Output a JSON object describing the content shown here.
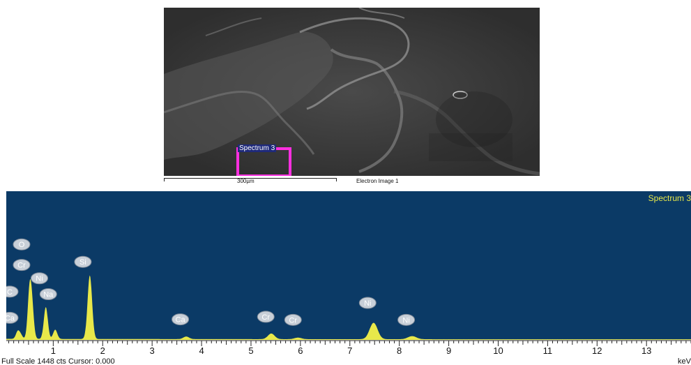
{
  "electron_image": {
    "spectrum_marker_label": "Spectrum 3",
    "scale_label": "300µm",
    "image_label": "Electron Image 1"
  },
  "spectrum": {
    "title": "Spectrum 3",
    "status_text": "Full Scale 1448 cts Cursor: 0.000",
    "x_unit": "keV",
    "background_color": "#0b3a66",
    "trace_color": "#e8e84a",
    "marker_color": "#ff2fe0"
  },
  "chart_data": {
    "type": "area",
    "title": "Spectrum 3",
    "xlabel": "keV",
    "ylabel": "",
    "xlim": [
      0.05,
      13.9
    ],
    "ylim": [
      0,
      1448
    ],
    "grid": false,
    "x_ticks": [
      1,
      2,
      3,
      4,
      5,
      6,
      7,
      8,
      9,
      10,
      11,
      12,
      13
    ],
    "peaks": [
      {
        "element": "C",
        "x": 0.28,
        "y": 70
      },
      {
        "element": "Ca",
        "x": 0.34,
        "y": 40
      },
      {
        "element": "O",
        "x": 0.52,
        "y": 430
      },
      {
        "element": "Cr",
        "x": 0.57,
        "y": 280
      },
      {
        "element": "Ni",
        "x": 0.85,
        "y": 310
      },
      {
        "element": "Na",
        "x": 1.04,
        "y": 90
      },
      {
        "element": "Si",
        "x": 1.74,
        "y": 620
      },
      {
        "element": "Ca",
        "x": 3.69,
        "y": 25
      },
      {
        "element": "Cr",
        "x": 5.41,
        "y": 55
      },
      {
        "element": "Cr",
        "x": 5.95,
        "y": 15
      },
      {
        "element": "Ni",
        "x": 7.48,
        "y": 160
      },
      {
        "element": "Ni",
        "x": 8.26,
        "y": 30
      }
    ],
    "label_positions": [
      {
        "text": "C",
        "x": 0.12,
        "y": 470
      },
      {
        "text": "Ca",
        "x": 0.12,
        "y": 215
      },
      {
        "text": "O",
        "x": 0.36,
        "y": 930
      },
      {
        "text": "Cr",
        "x": 0.36,
        "y": 730
      },
      {
        "text": "Ni",
        "x": 0.72,
        "y": 600
      },
      {
        "text": "Na",
        "x": 0.9,
        "y": 445
      },
      {
        "text": "Si",
        "x": 1.6,
        "y": 760
      },
      {
        "text": "Ca",
        "x": 3.57,
        "y": 200
      },
      {
        "text": "Cr",
        "x": 5.3,
        "y": 225
      },
      {
        "text": "Cr",
        "x": 5.85,
        "y": 195
      },
      {
        "text": "Ni",
        "x": 7.36,
        "y": 360
      },
      {
        "text": "Ni",
        "x": 8.14,
        "y": 195
      }
    ]
  }
}
